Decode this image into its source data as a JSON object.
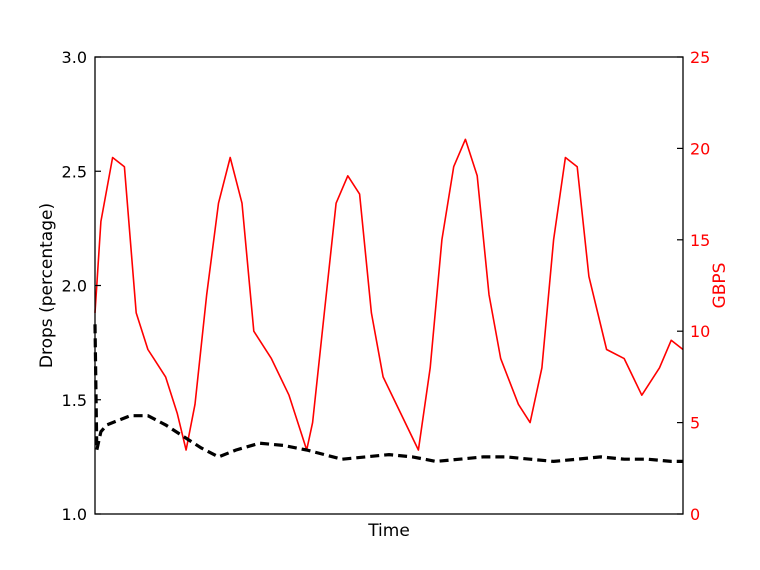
{
  "chart_data": {
    "type": "line",
    "title": "",
    "xlabel": "Time",
    "ylabel_left": "Drops (percentage)",
    "ylabel_right": "GBPS",
    "ylim_left": [
      1.0,
      3.0
    ],
    "ylim_right": [
      0,
      25
    ],
    "xlim": [
      0,
      1
    ],
    "yticks_left": [
      "1.0",
      "1.5",
      "2.0",
      "2.5",
      "3.0"
    ],
    "yticks_right": [
      "0",
      "5",
      "10",
      "15",
      "20",
      "25"
    ],
    "grid": false,
    "legend": "none",
    "colors": {
      "throughput": "#ff0000",
      "drops": "#000000",
      "axes": "#000000"
    },
    "series": [
      {
        "axis": "right",
        "style": "solid",
        "color": "#ff0000",
        "x": [
          0.0,
          0.01,
          0.03,
          0.05,
          0.07,
          0.09,
          0.1,
          0.12,
          0.14,
          0.155,
          0.17,
          0.19,
          0.21,
          0.23,
          0.25,
          0.27,
          0.3,
          0.33,
          0.36,
          0.37,
          0.39,
          0.41,
          0.43,
          0.45,
          0.47,
          0.49,
          0.52,
          0.55,
          0.57,
          0.59,
          0.61,
          0.63,
          0.65,
          0.67,
          0.69,
          0.72,
          0.74,
          0.76,
          0.78,
          0.8,
          0.82,
          0.84,
          0.87,
          0.9,
          0.93,
          0.96,
          0.98,
          1.0
        ],
        "values": [
          11,
          16,
          19.5,
          19,
          11,
          9,
          8.5,
          7.5,
          5.5,
          3.5,
          6,
          12,
          17,
          19.5,
          17,
          10,
          8.5,
          6.5,
          3.5,
          5,
          11,
          17,
          18.5,
          17.5,
          11,
          7.5,
          5.5,
          3.5,
          8,
          15,
          19,
          20.5,
          18.5,
          12,
          8.5,
          6,
          5,
          8,
          15,
          19.5,
          19,
          13,
          9,
          8.5,
          6.5,
          8,
          9.5,
          9
        ]
      },
      {
        "axis": "left",
        "style": "dashed",
        "color": "#000000",
        "x": [
          0.0,
          0.003,
          0.01,
          0.02,
          0.04,
          0.06,
          0.09,
          0.12,
          0.15,
          0.18,
          0.21,
          0.24,
          0.28,
          0.32,
          0.36,
          0.39,
          0.42,
          0.46,
          0.5,
          0.54,
          0.58,
          0.62,
          0.66,
          0.7,
          0.74,
          0.78,
          0.82,
          0.86,
          0.9,
          0.94,
          0.98,
          1.0
        ],
        "values": [
          1.83,
          1.28,
          1.36,
          1.39,
          1.41,
          1.43,
          1.43,
          1.39,
          1.34,
          1.29,
          1.25,
          1.28,
          1.31,
          1.3,
          1.28,
          1.26,
          1.24,
          1.25,
          1.26,
          1.25,
          1.23,
          1.24,
          1.25,
          1.25,
          1.24,
          1.23,
          1.24,
          1.25,
          1.24,
          1.24,
          1.23,
          1.23
        ]
      }
    ]
  }
}
